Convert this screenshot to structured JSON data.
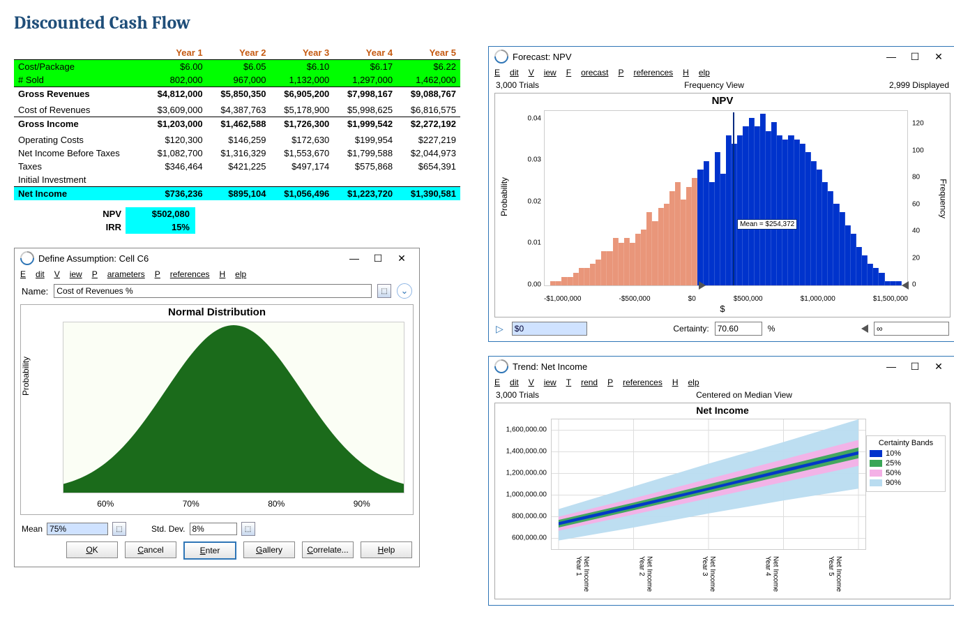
{
  "title": "Discounted Cash Flow",
  "dcf": {
    "headers": [
      "Year 1",
      "Year 2",
      "Year 3",
      "Year 4",
      "Year 5"
    ],
    "rows": [
      {
        "label": "Cost/Package",
        "class": "row-green",
        "cells": [
          "$6.00",
          "$6.05",
          "$6.10",
          "$6.17",
          "$6.22"
        ]
      },
      {
        "label": "# Sold",
        "class": "row-green underline",
        "cells": [
          "802,000",
          "967,000",
          "1,132,000",
          "1,297,000",
          "1,462,000"
        ]
      },
      {
        "label": "Gross Revenues",
        "class": "bold",
        "cells": [
          "$4,812,000",
          "$5,850,350",
          "$6,905,200",
          "$7,998,167",
          "$9,088,767"
        ]
      },
      {
        "label": "",
        "class": "",
        "cells": [
          "",
          "",
          "",
          "",
          ""
        ]
      },
      {
        "label": "Cost of Revenues",
        "class": "underline",
        "cells": [
          "$3,609,000",
          "$4,387,763",
          "$5,178,900",
          "$5,998,625",
          "$6,816,575"
        ]
      },
      {
        "label": "Gross Income",
        "class": "bold",
        "cells": [
          "$1,203,000",
          "$1,462,588",
          "$1,726,300",
          "$1,999,542",
          "$2,272,192"
        ]
      },
      {
        "label": "",
        "class": "",
        "cells": [
          "",
          "",
          "",
          "",
          ""
        ]
      },
      {
        "label": "Operating Costs",
        "class": "",
        "cells": [
          "$120,300",
          "$146,259",
          "$172,630",
          "$199,954",
          "$227,219"
        ]
      },
      {
        "label": "Net Income Before Taxes",
        "class": "",
        "cells": [
          "$1,082,700",
          "$1,316,329",
          "$1,553,670",
          "$1,799,588",
          "$2,044,973"
        ]
      },
      {
        "label": "Taxes",
        "class": "",
        "cells": [
          "$346,464",
          "$421,225",
          "$497,174",
          "$575,868",
          "$654,391"
        ]
      },
      {
        "label": "Initial Investment",
        "class": "underline",
        "cells": [
          "",
          "",
          "",
          "",
          ""
        ]
      },
      {
        "label": "Net Income",
        "class": "bold row-cyan",
        "cells": [
          "$736,236",
          "$895,104",
          "$1,056,496",
          "$1,223,720",
          "$1,390,581"
        ]
      }
    ],
    "npv_label": "NPV",
    "npv_value": "$502,080",
    "irr_label": "IRR",
    "irr_value": "15%"
  },
  "define_win": {
    "title": "Define Assumption: Cell C6",
    "menu": [
      [
        "E",
        "dit"
      ],
      [
        "V",
        "iew"
      ],
      [
        "P",
        "arameters"
      ],
      [
        "P",
        "references"
      ],
      [
        "H",
        "elp"
      ]
    ],
    "name_label": "Name:",
    "name_value": "Cost of Revenues %",
    "chart_title": "Normal Distribution",
    "yaxis": "Probability",
    "chart": {
      "type": "area",
      "fill_color": "#1b6b1b",
      "bg": "#fbfef5",
      "xlim": [
        55,
        95
      ],
      "xticks": [
        "60%",
        "70%",
        "80%",
        "90%"
      ],
      "mean": 75,
      "sd": 8
    },
    "mean_label": "Mean",
    "mean_value": "75%",
    "sd_label": "Std. Dev.",
    "sd_value": "8%",
    "buttons": [
      "OK",
      "Cancel",
      "Enter",
      "Gallery",
      "Correlate...",
      "Help"
    ],
    "default_btn": "Enter"
  },
  "forecast_win": {
    "title": "Forecast: NPV",
    "menu": [
      [
        "E",
        "dit"
      ],
      [
        "V",
        "iew"
      ],
      [
        "F",
        "orecast"
      ],
      [
        "P",
        "references"
      ],
      [
        "H",
        "elp"
      ]
    ],
    "trials": "3,000 Trials",
    "view": "Frequency View",
    "displayed": "2,999 Displayed",
    "chart_title": "NPV",
    "yaxis_left": "Probability",
    "yaxis_right": "Frequency",
    "xaxis": "$",
    "chart": {
      "type": "histogram",
      "xlim": [
        -1200000,
        1600000
      ],
      "xticks": [
        "-$1,000,000",
        "-$500,000",
        "$0",
        "$500,000",
        "$1,000,000",
        "$1,500,000"
      ],
      "ylim_left": [
        0,
        0.042
      ],
      "yticks_left": [
        "0.00",
        "0.01",
        "0.02",
        "0.03",
        "0.04"
      ],
      "ylim_right": [
        0,
        130
      ],
      "yticks_right": [
        "0",
        "20",
        "40",
        "60",
        "80",
        "100",
        "120"
      ],
      "split_x": 0,
      "color_left": "#e9967a",
      "color_right": "#0033cc",
      "bg": "#ffffff",
      "mean_x": 254372,
      "mean_text": "Mean = $254,372",
      "bar_probs": [
        0.0,
        0.001,
        0.001,
        0.002,
        0.002,
        0.003,
        0.004,
        0.004,
        0.005,
        0.006,
        0.008,
        0.008,
        0.011,
        0.01,
        0.011,
        0.01,
        0.012,
        0.013,
        0.017,
        0.015,
        0.018,
        0.019,
        0.022,
        0.024,
        0.02,
        0.023,
        0.025,
        0.027,
        0.029,
        0.024,
        0.031,
        0.026,
        0.035,
        0.033,
        0.035,
        0.037,
        0.039,
        0.037,
        0.04,
        0.036,
        0.038,
        0.035,
        0.034,
        0.035,
        0.034,
        0.033,
        0.031,
        0.029,
        0.027,
        0.024,
        0.022,
        0.019,
        0.017,
        0.014,
        0.012,
        0.009,
        0.007,
        0.005,
        0.004,
        0.003,
        0.001,
        0.001,
        0.001,
        0.0
      ]
    },
    "low_input": "$0",
    "cert_label": "Certainty:",
    "cert_value": "70.60",
    "cert_unit": "%",
    "high_input": "∞"
  },
  "trend_win": {
    "title": "Trend: Net Income",
    "menu": [
      [
        "E",
        "dit"
      ],
      [
        "V",
        "iew"
      ],
      [
        "T",
        "rend"
      ],
      [
        "P",
        "references"
      ],
      [
        "H",
        "elp"
      ]
    ],
    "trials": "3,000 Trials",
    "view": "Centered on Median View",
    "chart_title": "Net Income",
    "chart": {
      "type": "line",
      "bg": "#ffffff",
      "ylim": [
        500000,
        1700000
      ],
      "yticks": [
        "600,000.00",
        "800,000.00",
        "1,000,000.00",
        "1,200,000.00",
        "1,400,000.00",
        "1,600,000.00"
      ],
      "xticks": [
        "Net Income Year 1",
        "Net Income Year 2",
        "Net Income Year 3",
        "Net Income Year 4",
        "Net Income Year 5"
      ],
      "bands": [
        {
          "pct": "90%",
          "color": "#b9dcf0",
          "low": [
            580000,
            700000,
            830000,
            950000,
            1060000
          ],
          "high": [
            870000,
            1080000,
            1290000,
            1490000,
            1700000
          ]
        },
        {
          "pct": "50%",
          "color": "#f4b0e6",
          "low": [
            670000,
            820000,
            970000,
            1120000,
            1270000
          ],
          "high": [
            800000,
            970000,
            1150000,
            1330000,
            1510000
          ]
        },
        {
          "pct": "25%",
          "color": "#3aa657",
          "low": [
            700000,
            860000,
            1020000,
            1180000,
            1340000
          ],
          "high": [
            770000,
            930000,
            1100000,
            1270000,
            1440000
          ]
        },
        {
          "pct": "10%",
          "color": "#0033cc",
          "low": [
            722000,
            880000,
            1045000,
            1210000,
            1375000
          ],
          "high": [
            750000,
            910000,
            1070000,
            1240000,
            1405000
          ]
        }
      ]
    },
    "legend_title": "Certainty Bands",
    "legend": [
      {
        "label": "10%",
        "color": "#0033cc"
      },
      {
        "label": "25%",
        "color": "#3aa657"
      },
      {
        "label": "50%",
        "color": "#f4b0e6"
      },
      {
        "label": "90%",
        "color": "#b9dcf0"
      }
    ]
  }
}
